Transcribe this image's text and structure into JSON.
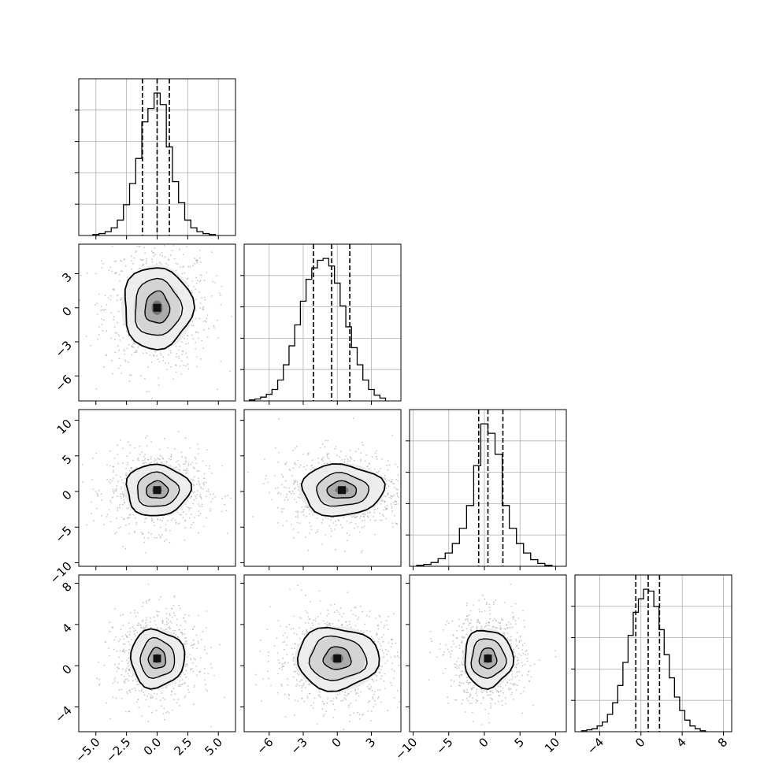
{
  "chart_data": {
    "type": "corner",
    "colors": {
      "ink": "#000000",
      "grid": "#b0b0b0",
      "scatter": "#9a9a9a",
      "background": "#ffffff"
    },
    "variables": [
      {
        "index": 0,
        "range": [
          -6.4,
          6.4
        ],
        "ticks": [
          "−5.0",
          "−2.5",
          "0.0",
          "2.5",
          "5.0"
        ],
        "tick_values": [
          -5,
          -2.5,
          0,
          2.5,
          5
        ],
        "quantiles": [
          -1.2,
          0.0,
          1.0
        ]
      },
      {
        "index": 1,
        "range": [
          -8.2,
          5.6
        ],
        "ticks": [
          "−6",
          "−3",
          "0",
          "3"
        ],
        "tick_values": [
          -6,
          -3,
          0,
          3
        ],
        "quantiles": [
          -2.1,
          -0.5,
          1.1
        ]
      },
      {
        "index": 2,
        "range": [
          -10.5,
          11.5
        ],
        "ticks": [
          "−10",
          "−5",
          "0",
          "5",
          "10"
        ],
        "tick_values": [
          -10,
          -5,
          0,
          5,
          10
        ],
        "quantiles": [
          -0.8,
          0.5,
          2.6
        ]
      },
      {
        "index": 3,
        "range": [
          -6.4,
          8.8
        ],
        "ticks": [
          "−4",
          "0",
          "4",
          "8"
        ],
        "tick_values": [
          -4,
          0,
          4,
          8
        ],
        "quantiles": [
          -0.5,
          0.7,
          1.8
        ]
      }
    ],
    "histograms": [
      {
        "variable": 0,
        "x": [
          -5,
          -4.5,
          -4,
          -3.5,
          -3,
          -2.5,
          -2,
          -1.5,
          -1,
          -0.5,
          0,
          0.5,
          1,
          1.5,
          2,
          2.5,
          3,
          3.5,
          4,
          4.5
        ],
        "counts": [
          1,
          2,
          4,
          8,
          16,
          32,
          54,
          80,
          118,
          132,
          148,
          136,
          92,
          56,
          34,
          16,
          8,
          4,
          2,
          1
        ]
      },
      {
        "variable": 1,
        "x": [
          -7.5,
          -7,
          -6.5,
          -6,
          -5.5,
          -5,
          -4.5,
          -4,
          -3.5,
          -3,
          -2.5,
          -2,
          -1.5,
          -1,
          -0.5,
          0,
          0.5,
          1,
          1.5,
          2,
          2.5,
          3,
          3.5,
          4
        ],
        "counts": [
          1,
          2,
          4,
          7,
          12,
          22,
          38,
          58,
          80,
          105,
          128,
          140,
          148,
          150,
          142,
          124,
          100,
          78,
          56,
          38,
          22,
          12,
          6,
          3
        ]
      },
      {
        "variable": 2,
        "x": [
          -9,
          -8,
          -7,
          -6,
          -5,
          -4,
          -3,
          -2,
          -1,
          0,
          1,
          2,
          3,
          4,
          5,
          6,
          7,
          8,
          9
        ],
        "counts": [
          1,
          2,
          4,
          8,
          14,
          24,
          40,
          64,
          106,
          150,
          140,
          118,
          64,
          40,
          24,
          14,
          7,
          3,
          1
        ]
      },
      {
        "variable": 3,
        "x": [
          -5.5,
          -5,
          -4.5,
          -4,
          -3.5,
          -3,
          -2.5,
          -2,
          -1.5,
          -1,
          -0.5,
          0,
          0.5,
          1,
          1.5,
          2,
          2.5,
          3,
          3.5,
          4,
          4.5,
          5,
          5.5,
          6
        ],
        "counts": [
          1,
          2,
          3,
          6,
          10,
          18,
          30,
          48,
          72,
          100,
          124,
          138,
          148,
          146,
          130,
          106,
          80,
          56,
          36,
          22,
          12,
          6,
          3,
          1
        ]
      }
    ],
    "pairs": [
      {
        "x": 0,
        "y": 1,
        "center": [
          0.0,
          0.0
        ],
        "levels": [
          [
            1.0,
            1.4
          ],
          [
            1.9,
            2.5
          ],
          [
            2.8,
            3.6
          ]
        ]
      },
      {
        "x": 0,
        "y": 2,
        "center": [
          0.0,
          0.2
        ],
        "levels": [
          [
            0.9,
            1.2
          ],
          [
            1.7,
            2.4
          ],
          [
            2.6,
            3.6
          ]
        ]
      },
      {
        "x": 1,
        "y": 2,
        "center": [
          0.4,
          0.2
        ],
        "levels": [
          [
            1.3,
            1.2
          ],
          [
            2.3,
            2.3
          ],
          [
            3.6,
            3.6
          ]
        ]
      },
      {
        "x": 0,
        "y": 3,
        "center": [
          0.0,
          0.7
        ],
        "levels": [
          [
            0.7,
            1.0
          ],
          [
            1.4,
            1.9
          ],
          [
            2.2,
            2.8
          ]
        ]
      },
      {
        "x": 1,
        "y": 3,
        "center": [
          0.0,
          0.7
        ],
        "levels": [
          [
            1.2,
            1.1
          ],
          [
            2.5,
            2.1
          ],
          [
            3.6,
            3.0
          ]
        ]
      },
      {
        "x": 2,
        "y": 3,
        "center": [
          0.5,
          0.7
        ],
        "levels": [
          [
            1.2,
            1.0
          ],
          [
            2.4,
            1.9
          ],
          [
            3.4,
            2.8
          ]
        ]
      }
    ]
  }
}
